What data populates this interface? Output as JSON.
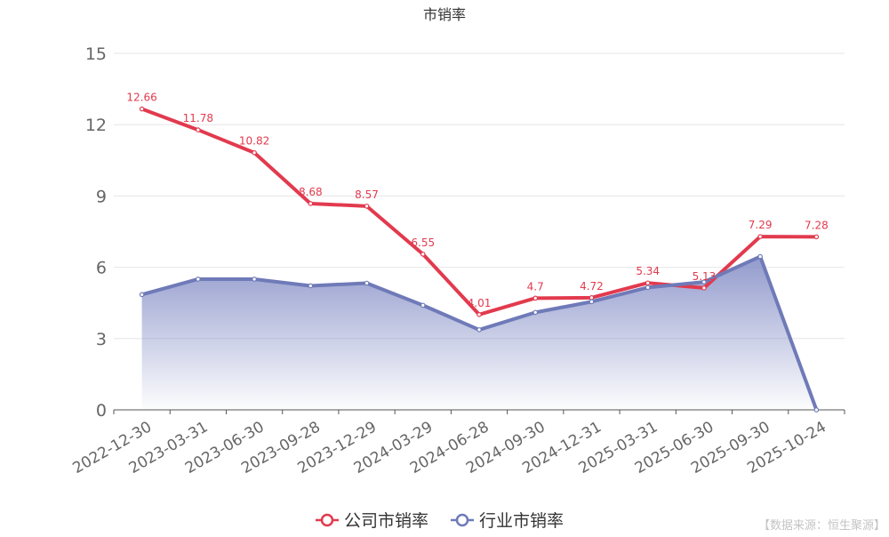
{
  "chart_data": {
    "type": "line",
    "title": "市销率",
    "categories": [
      "2022-12-30",
      "2023-03-31",
      "2023-06-30",
      "2023-09-28",
      "2023-12-29",
      "2024-03-29",
      "2024-06-28",
      "2024-09-30",
      "2024-12-31",
      "2025-03-31",
      "2025-06-30",
      "2025-09-30",
      "2025-10-24"
    ],
    "series": [
      {
        "name": "公司市销率",
        "color": "#e23a4e",
        "values": [
          12.66,
          11.78,
          10.82,
          8.68,
          8.57,
          6.55,
          4.01,
          4.7,
          4.72,
          5.34,
          5.13,
          7.29,
          7.28
        ],
        "labels": [
          "12.66",
          "11.78",
          "10.82",
          "8.68",
          "8.57",
          "6.55",
          "4.01",
          "4.7",
          "4.72",
          "5.34",
          "5.13",
          "7.29",
          "7.28"
        ],
        "show_labels": true,
        "area": false
      },
      {
        "name": "行业市销率",
        "color": "#6f7ab8",
        "values": [
          4.85,
          5.5,
          5.5,
          5.22,
          5.33,
          4.4,
          3.37,
          4.1,
          4.55,
          5.15,
          5.38,
          6.45,
          0
        ],
        "show_labels": false,
        "area": true
      }
    ],
    "ylim": [
      0,
      15
    ],
    "yticks": [
      0,
      3,
      6,
      9,
      12,
      15
    ],
    "grid": true,
    "legend_position": "bottom-center"
  },
  "source_note": "【数据来源：恒生聚源】"
}
